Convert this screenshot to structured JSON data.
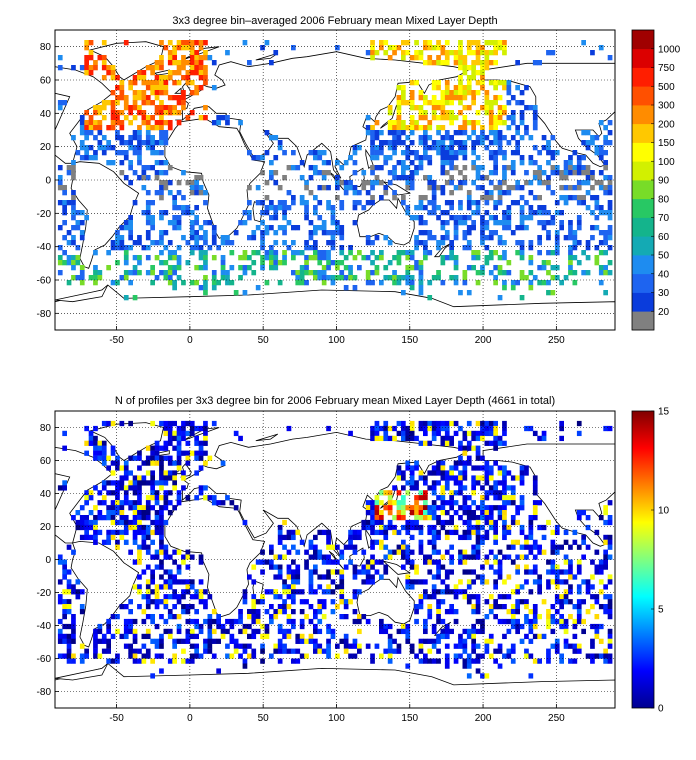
{
  "chart_data": [
    {
      "type": "heatmap",
      "title": "3x3 degree bin–averaged 2006 February mean Mixed Layer Depth",
      "xlabel": "",
      "ylabel": "",
      "xlim": [
        -92,
        290
      ],
      "ylim": [
        -90,
        90
      ],
      "x_ticks": [
        -50,
        0,
        50,
        100,
        150,
        200,
        250
      ],
      "y_ticks": [
        80,
        60,
        40,
        20,
        0,
        -20,
        -40,
        -60,
        -80
      ],
      "grid": true,
      "colorbar": {
        "type": "discrete",
        "labels": [
          "20",
          "30",
          "40",
          "50",
          "60",
          "70",
          "80",
          "90",
          "100",
          "150",
          "200",
          "300",
          "500",
          "750",
          "1000"
        ],
        "colors": [
          "#808080",
          "#0a3cdc",
          "#1e64f0",
          "#1e8cf0",
          "#14aab4",
          "#14b48c",
          "#28c864",
          "#78dc28",
          "#d2f000",
          "#ffff00",
          "#ffc800",
          "#ff8c00",
          "#ff5000",
          "#ff1e00",
          "#dc0000",
          "#a00000"
        ]
      }
    },
    {
      "type": "heatmap",
      "title": "N of profiles per 3x3 degree bin for 2006 February mean Mixed Layer Depth  (4661 in total)",
      "xlabel": "",
      "ylabel": "",
      "xlim": [
        -92,
        290
      ],
      "ylim": [
        -90,
        90
      ],
      "x_ticks": [
        -50,
        0,
        50,
        100,
        150,
        200,
        250
      ],
      "y_ticks": [
        80,
        60,
        40,
        20,
        0,
        -20,
        -40,
        -60,
        -80
      ],
      "grid": true,
      "colorbar": {
        "type": "continuous",
        "range": [
          0,
          15
        ],
        "ticks": [
          0,
          5,
          10,
          15
        ],
        "colormap": "jet"
      }
    }
  ]
}
